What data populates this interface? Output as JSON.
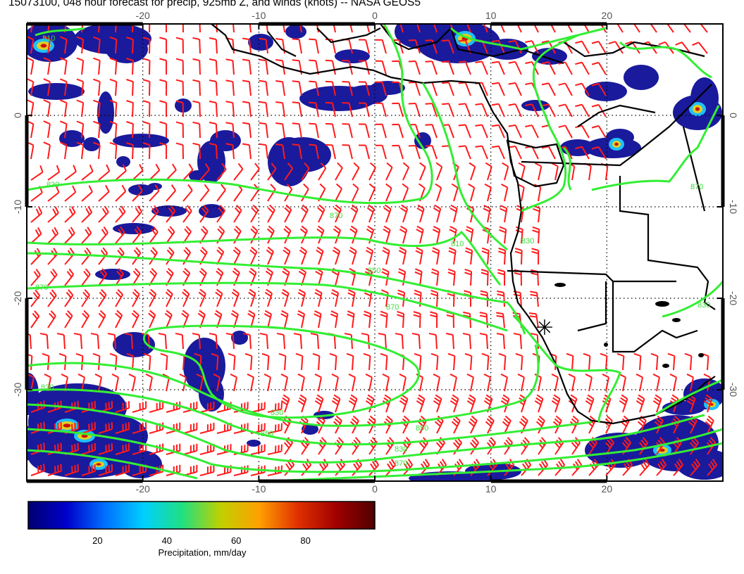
{
  "title": "15073100, 048 hour forecast for precip, 925mb Z, and winds (knots) -- NASA GEOS5",
  "map": {
    "lon_range": [
      -30,
      30
    ],
    "lat_range": [
      -40,
      10
    ],
    "top_lon_ticks": [
      "-20",
      "-10",
      "0",
      "10",
      "20"
    ],
    "bottom_lon_ticks": [
      "-20",
      "-10",
      "0",
      "10",
      "20"
    ],
    "left_lat_ticks": [
      "0",
      "-10",
      "-20",
      "-30"
    ],
    "right_lat_ticks": [
      "0",
      "-10",
      "-20",
      "-30"
    ],
    "contour_labels": [
      "810",
      "830",
      "870",
      "810",
      "830",
      "850",
      "870",
      "870",
      "850",
      "830",
      "870",
      "830",
      "830",
      "850",
      "870",
      "830"
    ],
    "marker_symbol": "✳",
    "colors": {
      "contours": "#33ee33",
      "barbs": "#ff1a1a",
      "coast": "#000000",
      "precip_low": "#1a1a9c",
      "precip_high": "#cc1111"
    }
  },
  "colorbar": {
    "tick_labels": [
      "20",
      "40",
      "60",
      "80"
    ],
    "label": "Precipitation, mm/day",
    "range": [
      0,
      100
    ],
    "stops": [
      "#000070",
      "#0000cc",
      "#0070ff",
      "#00d0ff",
      "#20e080",
      "#c0d000",
      "#ffa000",
      "#e03000",
      "#a00000",
      "#500000"
    ]
  }
}
